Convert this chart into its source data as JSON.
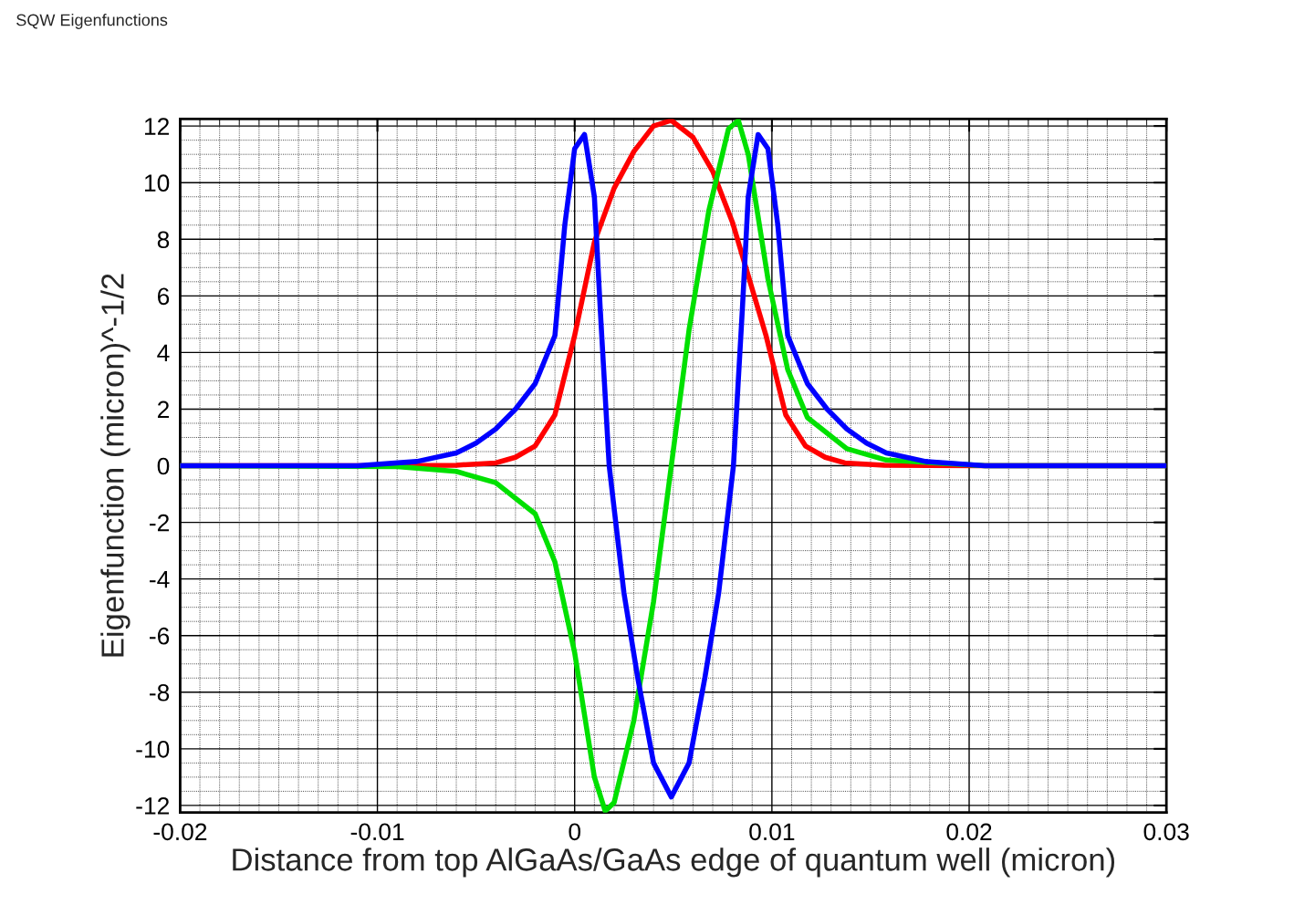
{
  "chart_data": {
    "type": "line",
    "title": "SQW Eigenfunctions",
    "xlabel": "Distance from top AlGaAs/GaAs edge of quantum well (micron)",
    "ylabel": "Eigenfunction (micron)^-1/2",
    "xlim": [
      -0.02,
      0.03
    ],
    "xticks": [
      -0.02,
      -0.01,
      0,
      0.01,
      0.02,
      0.03
    ],
    "ylim": [
      -12.25,
      12.25
    ],
    "yticks": [
      -12,
      -10,
      -8,
      -6,
      -4,
      -2,
      0,
      2,
      4,
      6,
      8,
      10,
      12
    ],
    "grid": true,
    "marker": "none",
    "line_style": "solid",
    "series": [
      {
        "color": "#ff0000",
        "x": [
          -0.02,
          -0.011,
          -0.006,
          -0.004,
          -0.003,
          -0.002,
          -0.001,
          0,
          0.001,
          0.002,
          0.003,
          0.004,
          0.0049,
          0.006,
          0.007,
          0.008,
          0.0097,
          0.0107,
          0.0117,
          0.0127,
          0.0137,
          0.0157,
          0.0207,
          0.03
        ],
        "values": [
          0,
          0,
          0.02,
          0.1,
          0.3,
          0.7,
          1.8,
          4.6,
          7.9,
          9.8,
          11.1,
          12.0,
          12.2,
          11.6,
          10.4,
          8.6,
          4.6,
          1.8,
          0.7,
          0.3,
          0.1,
          0.02,
          0,
          0
        ]
      },
      {
        "color": "#00e000",
        "x": [
          -0.02,
          -0.009,
          -0.006,
          -0.004,
          -0.002,
          -0.001,
          0,
          0.0005,
          0.001,
          0.00155,
          0.002,
          0.003,
          0.004,
          0.0049,
          0.0058,
          0.0068,
          0.0078,
          0.0083,
          0.0088,
          0.0093,
          0.0098,
          0.0108,
          0.0118,
          0.0138,
          0.0158,
          0.0208,
          0.03
        ],
        "values": [
          0,
          -0.03,
          -0.2,
          -0.6,
          -1.7,
          -3.4,
          -6.6,
          -8.8,
          -11.0,
          -12.2,
          -11.9,
          -9.0,
          -4.8,
          0,
          4.8,
          9.0,
          11.9,
          12.2,
          11.0,
          8.8,
          6.6,
          3.4,
          1.7,
          0.6,
          0.2,
          0,
          0
        ]
      },
      {
        "color": "#0000ff",
        "x": [
          -0.02,
          -0.011,
          -0.008,
          -0.006,
          -0.005,
          -0.004,
          -0.003,
          -0.002,
          -0.001,
          -0.0005,
          0,
          0.0005,
          0.001,
          0.0013,
          0.00175,
          0.0025,
          0.0032,
          0.004,
          0.0049,
          0.0058,
          0.0066,
          0.0073,
          0.00805,
          0.0085,
          0.0088,
          0.0093,
          0.0098,
          0.0103,
          0.0108,
          0.0118,
          0.0128,
          0.0138,
          0.0148,
          0.0158,
          0.0178,
          0.0208,
          0.03
        ],
        "values": [
          0,
          0,
          0.15,
          0.45,
          0.8,
          1.3,
          2.0,
          2.9,
          4.6,
          8.5,
          11.2,
          11.7,
          9.5,
          5.5,
          0,
          -4.5,
          -7.5,
          -10.5,
          -11.7,
          -10.5,
          -7.5,
          -4.5,
          0,
          5.5,
          9.5,
          11.7,
          11.2,
          8.5,
          4.6,
          2.9,
          2.0,
          1.3,
          0.8,
          0.45,
          0.15,
          0,
          0
        ]
      }
    ]
  }
}
